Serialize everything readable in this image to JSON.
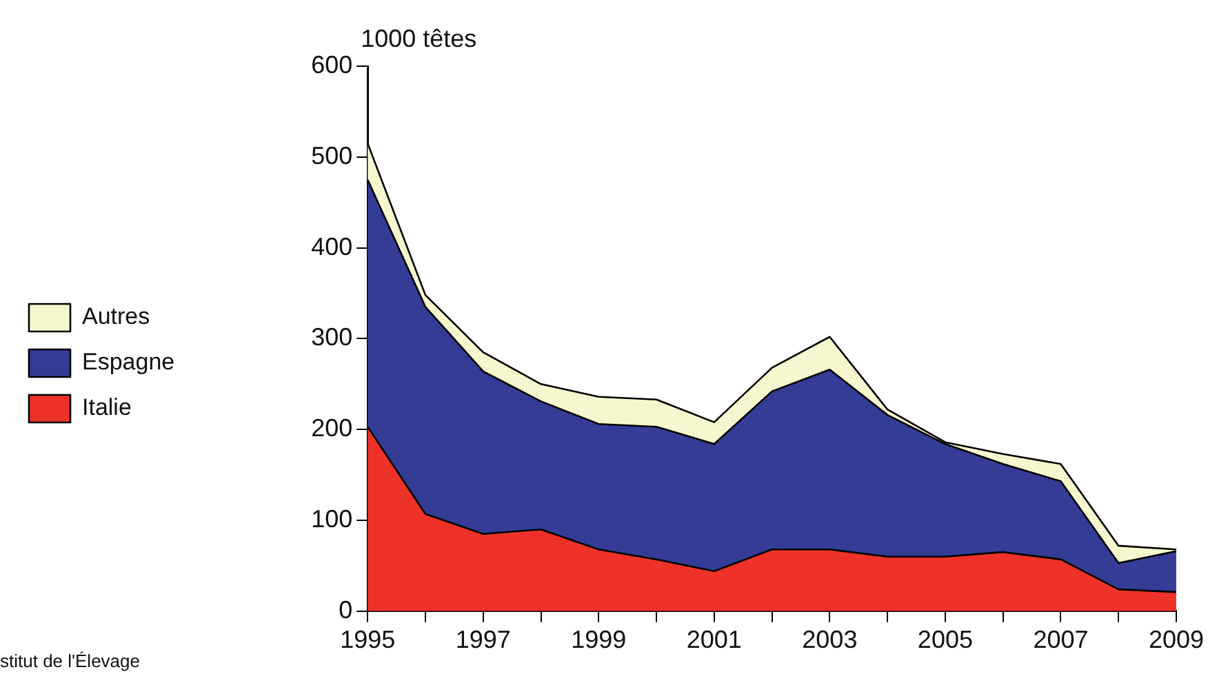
{
  "chart_data": {
    "type": "area",
    "stacked": true,
    "ylabel": "1000 têtes",
    "annotations": [
      "stitut de l'Élevage"
    ],
    "x": [
      1995,
      1996,
      1997,
      1998,
      1999,
      2000,
      2001,
      2002,
      2003,
      2004,
      2005,
      2006,
      2007,
      2008,
      2009
    ],
    "series": [
      {
        "name": "Italie",
        "color": "#ee3129",
        "values": [
          203,
          107,
          85,
          90,
          68,
          57,
          44,
          68,
          68,
          60,
          60,
          65,
          57,
          24,
          21
        ]
      },
      {
        "name": "Espagne",
        "color": "#343c96",
        "values": [
          272,
          228,
          179,
          141,
          138,
          146,
          140,
          174,
          198,
          156,
          124,
          97,
          86,
          29,
          45
        ]
      },
      {
        "name": "Autres",
        "color": "#f7f7cf",
        "values": [
          40,
          13,
          21,
          19,
          30,
          30,
          24,
          26,
          36,
          6,
          2,
          11,
          19,
          19,
          2
        ]
      }
    ],
    "xlim": [
      1995,
      2009
    ],
    "xticks": [
      1995,
      {
        "value": 1996,
        "label": null
      },
      1997,
      {
        "value": 1998,
        "label": null
      },
      1999,
      {
        "value": 2000,
        "label": null
      },
      2001,
      {
        "value": 2002,
        "label": null
      },
      2003,
      {
        "value": 2004,
        "label": null
      },
      2005,
      {
        "value": 2006,
        "label": null
      },
      2007,
      {
        "value": 2008,
        "label": null
      },
      2009
    ],
    "ylim": [
      0,
      600
    ],
    "yticks": [
      0,
      100,
      200,
      300,
      400,
      500,
      600
    ],
    "grid": false,
    "legend": "left",
    "marker": "none",
    "line_style": "solid"
  }
}
